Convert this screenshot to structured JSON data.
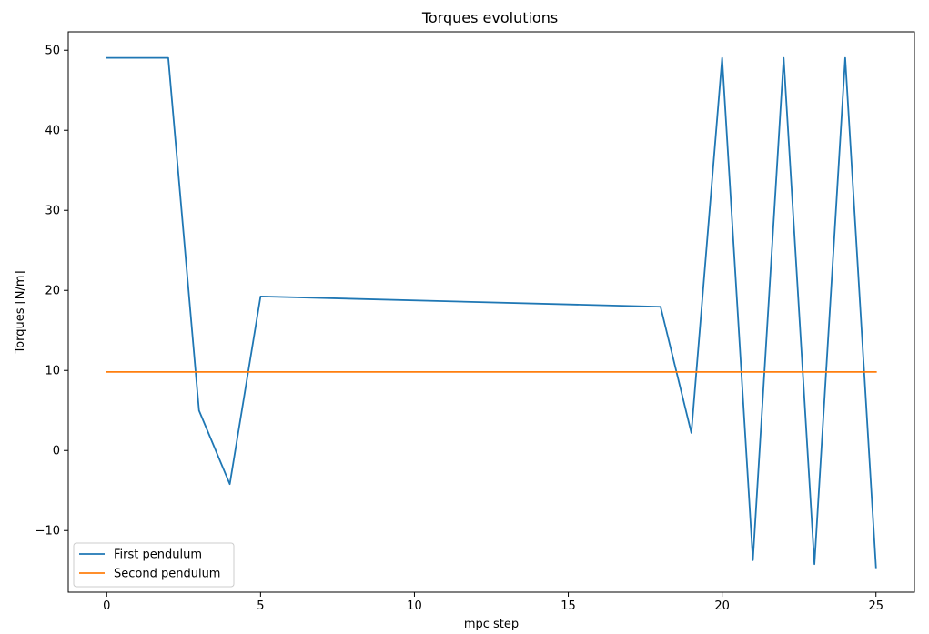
{
  "chart_data": {
    "type": "line",
    "title": "Torques evolutions",
    "xlabel": "mpc step",
    "ylabel": "Torques [N/m]",
    "xlim": [
      -1.25,
      26.25
    ],
    "ylim": [
      -17.7,
      52.3
    ],
    "xticks": [
      0,
      5,
      10,
      15,
      20,
      25
    ],
    "yticks": [
      -10,
      0,
      10,
      20,
      30,
      40,
      50
    ],
    "ytick_labels": [
      "−10",
      "0",
      "10",
      "20",
      "30",
      "40",
      "50"
    ],
    "grid": false,
    "legend_position": "lower-left",
    "series": [
      {
        "name": "First pendulum",
        "color": "#1f77b4",
        "x": [
          0,
          1,
          2,
          3,
          4,
          5,
          18,
          19,
          20,
          21,
          22,
          23,
          24,
          25
        ],
        "y": [
          49.05,
          49.05,
          49.05,
          5.0,
          -4.2,
          19.25,
          17.95,
          2.2,
          49.05,
          -13.7,
          49.05,
          -14.2,
          49.05,
          -14.6
        ]
      },
      {
        "name": "Second pendulum",
        "color": "#ff7f0e",
        "x": [
          0,
          25
        ],
        "y": [
          9.81,
          9.81
        ]
      }
    ]
  }
}
